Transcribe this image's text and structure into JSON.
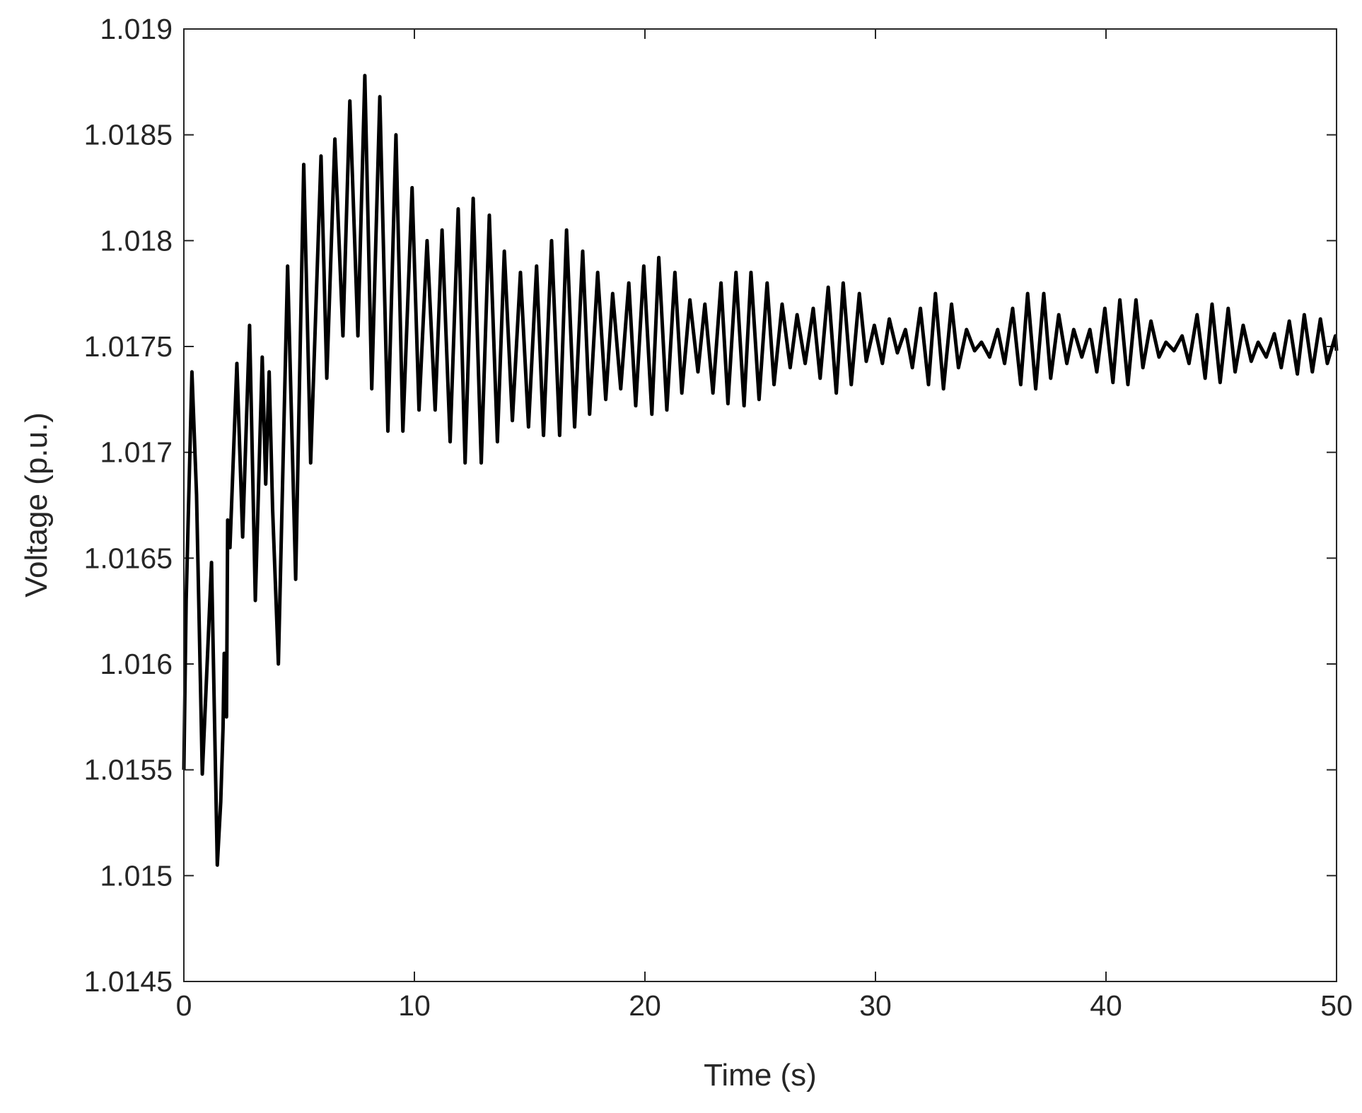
{
  "chart_data": {
    "type": "line",
    "title": "",
    "xlabel": "Time (s)",
    "ylabel": "Voltage (p.u.)",
    "xlim": [
      0,
      50
    ],
    "ylim": [
      1.0145,
      1.019
    ],
    "grid": false,
    "legend": "none",
    "x_ticks": [
      0,
      10,
      20,
      30,
      40,
      50
    ],
    "x_tick_labels": [
      "0",
      "10",
      "20",
      "30",
      "40",
      "50"
    ],
    "y_ticks": [
      1.0145,
      1.015,
      1.0155,
      1.016,
      1.0165,
      1.017,
      1.0175,
      1.018,
      1.0185,
      1.019
    ],
    "y_tick_labels": [
      "1.0145",
      "1.015",
      "1.0155",
      "1.016",
      "1.0165",
      "1.017",
      "1.0175",
      "1.018",
      "1.0185",
      "1.019"
    ],
    "series": [
      {
        "color": "#000000",
        "x": [
          0,
          0.1,
          0.35,
          0.55,
          0.8,
          0.95,
          1.2,
          1.45,
          1.6,
          1.7,
          1.75,
          1.85,
          1.9,
          2.0,
          2.3,
          2.55,
          2.85,
          3.1,
          3.4,
          3.55,
          3.7,
          3.85,
          4.1,
          4.5,
          4.85,
          5.2,
          5.5,
          5.95,
          6.2,
          6.55,
          6.9,
          7.2,
          7.55,
          7.85,
          8.15,
          8.5,
          8.85,
          9.2,
          9.5,
          9.9,
          10.2,
          10.55,
          10.9,
          11.2,
          11.55,
          11.9,
          12.2,
          12.55,
          12.9,
          13.25,
          13.6,
          13.9,
          14.25,
          14.6,
          14.95,
          15.3,
          15.6,
          15.95,
          16.3,
          16.6,
          16.95,
          17.3,
          17.6,
          17.95,
          18.3,
          18.6,
          18.95,
          19.3,
          19.6,
          19.95,
          20.3,
          20.6,
          20.95,
          21.3,
          21.6,
          21.95,
          22.3,
          22.6,
          22.95,
          23.3,
          23.6,
          23.95,
          24.3,
          24.6,
          24.95,
          25.3,
          25.6,
          25.95,
          26.3,
          26.6,
          26.95,
          27.3,
          27.6,
          27.95,
          28.3,
          28.6,
          28.95,
          29.3,
          29.6,
          29.95,
          30.3,
          30.6,
          30.95,
          31.3,
          31.6,
          31.95,
          32.3,
          32.6,
          32.95,
          33.3,
          33.6,
          33.95,
          34.3,
          34.6,
          34.95,
          35.3,
          35.6,
          35.95,
          36.3,
          36.6,
          36.95,
          37.3,
          37.6,
          37.95,
          38.3,
          38.6,
          38.95,
          39.3,
          39.6,
          39.95,
          40.3,
          40.6,
          40.95,
          41.3,
          41.6,
          41.95,
          42.3,
          42.6,
          42.95,
          43.3,
          43.6,
          43.95,
          44.3,
          44.6,
          44.95,
          45.3,
          45.6,
          45.95,
          46.3,
          46.6,
          46.95,
          47.3,
          47.6,
          47.95,
          48.3,
          48.6,
          48.95,
          49.3,
          49.6,
          49.95,
          50.0
        ],
        "y": [
          1.0155,
          1.0163,
          1.01738,
          1.0168,
          1.01548,
          1.01585,
          1.01648,
          1.01505,
          1.01535,
          1.0157,
          1.01605,
          1.01575,
          1.01668,
          1.01655,
          1.01742,
          1.0166,
          1.0176,
          1.0163,
          1.01745,
          1.01685,
          1.01738,
          1.01673,
          1.016,
          1.01788,
          1.0164,
          1.01836,
          1.01695,
          1.0184,
          1.01735,
          1.01848,
          1.01755,
          1.01866,
          1.01755,
          1.01878,
          1.0173,
          1.01868,
          1.0171,
          1.0185,
          1.0171,
          1.01825,
          1.0172,
          1.018,
          1.0172,
          1.01805,
          1.01705,
          1.01815,
          1.01695,
          1.0182,
          1.01695,
          1.01812,
          1.01705,
          1.01795,
          1.01715,
          1.01785,
          1.01712,
          1.01788,
          1.01708,
          1.018,
          1.01708,
          1.01805,
          1.01712,
          1.01795,
          1.01718,
          1.01785,
          1.01725,
          1.01775,
          1.0173,
          1.0178,
          1.01722,
          1.01788,
          1.01718,
          1.01792,
          1.0172,
          1.01785,
          1.01728,
          1.01772,
          1.01738,
          1.0177,
          1.01728,
          1.0178,
          1.01723,
          1.01785,
          1.01722,
          1.01785,
          1.01725,
          1.0178,
          1.01732,
          1.0177,
          1.0174,
          1.01765,
          1.01742,
          1.01768,
          1.01735,
          1.01778,
          1.01728,
          1.0178,
          1.01732,
          1.01775,
          1.01743,
          1.0176,
          1.01742,
          1.01763,
          1.01747,
          1.01758,
          1.0174,
          1.01768,
          1.01732,
          1.01775,
          1.0173,
          1.0177,
          1.0174,
          1.01758,
          1.01748,
          1.01752,
          1.01745,
          1.01758,
          1.01742,
          1.01768,
          1.01732,
          1.01775,
          1.0173,
          1.01775,
          1.01735,
          1.01765,
          1.01742,
          1.01758,
          1.01745,
          1.01758,
          1.01738,
          1.01768,
          1.01733,
          1.01772,
          1.01732,
          1.01772,
          1.0174,
          1.01762,
          1.01745,
          1.01752,
          1.01748,
          1.01755,
          1.01742,
          1.01765,
          1.01735,
          1.0177,
          1.01733,
          1.01768,
          1.01738,
          1.0176,
          1.01743,
          1.01752,
          1.01745,
          1.01756,
          1.0174,
          1.01762,
          1.01737,
          1.01765,
          1.01738,
          1.01763,
          1.01742,
          1.01755,
          1.01748
        ]
      }
    ]
  }
}
